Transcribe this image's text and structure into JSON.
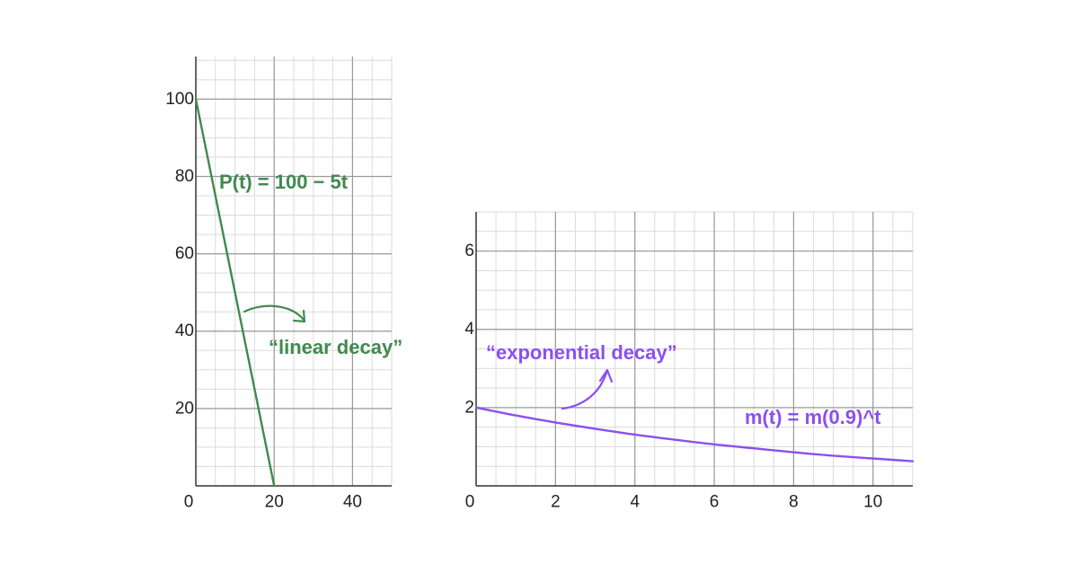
{
  "colors": {
    "linear": "#3f8a4f",
    "exponential": "#8b4ff0",
    "grid_major": "#9a9a9a",
    "grid_minor": "#dadada",
    "axis": "#333333"
  },
  "chart_data": [
    {
      "type": "line",
      "title": "",
      "xlabel": "",
      "ylabel": "",
      "xlim": [
        0,
        50
      ],
      "ylim": [
        0,
        111
      ],
      "x_ticks": [
        0,
        20,
        40
      ],
      "x_tick_labels": [
        "0",
        "20",
        "40"
      ],
      "y_ticks": [
        20,
        40,
        60,
        80,
        100
      ],
      "y_tick_labels": [
        "20",
        "40",
        "60",
        "80",
        "100"
      ],
      "grid": true,
      "series": [
        {
          "x": [
            0,
            20
          ],
          "y": [
            100,
            0
          ],
          "color": "#3f8a4f"
        }
      ],
      "annotations": {
        "equation": "P(t) = 100 − 5t",
        "description": "“linear decay”"
      }
    },
    {
      "type": "line",
      "title": "",
      "xlabel": "",
      "ylabel": "",
      "xlim": [
        0,
        11
      ],
      "ylim": [
        0,
        7
      ],
      "x_ticks": [
        0,
        2,
        4,
        6,
        8,
        10
      ],
      "x_tick_labels": [
        "0",
        "2",
        "4",
        "6",
        "8",
        "10"
      ],
      "y_ticks": [
        2,
        4,
        6
      ],
      "y_tick_labels": [
        "2",
        "4",
        "6"
      ],
      "grid": true,
      "series": [
        {
          "x": [
            0,
            1,
            2,
            3,
            4,
            5,
            6,
            7,
            8,
            9,
            10,
            11
          ],
          "y": [
            2.0,
            1.8,
            1.62,
            1.46,
            1.31,
            1.18,
            1.06,
            0.96,
            0.86,
            0.77,
            0.7,
            0.63
          ],
          "color": "#8b4ff0"
        }
      ],
      "annotations": {
        "equation": "m(t) = m(0.9)^t",
        "description": "“exponential decay”"
      }
    }
  ]
}
